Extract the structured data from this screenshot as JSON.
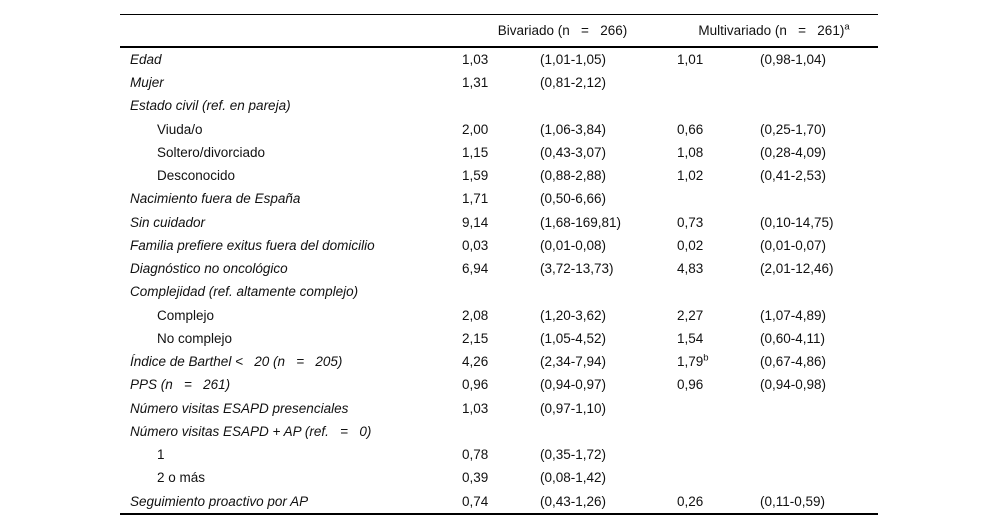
{
  "page": {
    "background_color": "#ffffff",
    "text_color": "#111111",
    "rule_color": "#000000"
  },
  "table": {
    "header": {
      "bivariate": "Bivariado (n   =   266)",
      "bivariate_sup": "",
      "multivariate": "Multivariado (n   =   261)",
      "multivariate_sup": "a"
    },
    "rows": [
      {
        "label": "Edad",
        "style": "main",
        "or1": "1,03",
        "ci1": "(1,01-1,05)",
        "or2": "1,01",
        "sup2": "",
        "ci2": "(0,98-1,04)"
      },
      {
        "label": "Mujer",
        "style": "main",
        "or1": "1,31",
        "ci1": "(0,81-2,12)",
        "or2": "",
        "sup2": "",
        "ci2": ""
      },
      {
        "label": "Estado civil (ref. en pareja)",
        "style": "main",
        "or1": "",
        "ci1": "",
        "or2": "",
        "sup2": "",
        "ci2": ""
      },
      {
        "label": "Viuda/o",
        "style": "sub",
        "or1": "2,00",
        "ci1": "(1,06-3,84)",
        "or2": "0,66",
        "sup2": "",
        "ci2": "(0,25-1,70)"
      },
      {
        "label": "Soltero/divorciado",
        "style": "sub",
        "or1": "1,15",
        "ci1": "(0,43-3,07)",
        "or2": "1,08",
        "sup2": "",
        "ci2": "(0,28-4,09)"
      },
      {
        "label": "Desconocido",
        "style": "sub",
        "or1": "1,59",
        "ci1": "(0,88-2,88)",
        "or2": "1,02",
        "sup2": "",
        "ci2": "(0,41-2,53)"
      },
      {
        "label": "Nacimiento fuera de España",
        "style": "main",
        "or1": "1,71",
        "ci1": "(0,50-6,66)",
        "or2": "",
        "sup2": "",
        "ci2": ""
      },
      {
        "label": "Sin cuidador",
        "style": "main",
        "or1": "9,14",
        "ci1": "(1,68-169,81)",
        "or2": "0,73",
        "sup2": "",
        "ci2": "(0,10-14,75)"
      },
      {
        "label": "Familia prefiere exitus fuera del domicilio",
        "style": "main",
        "or1": "0,03",
        "ci1": "(0,01-0,08)",
        "or2": "0,02",
        "sup2": "",
        "ci2": "(0,01-0,07)"
      },
      {
        "label": "Diagnóstico no oncológico",
        "style": "main",
        "or1": "6,94",
        "ci1": "(3,72-13,73)",
        "or2": "4,83",
        "sup2": "",
        "ci2": "(2,01-12,46)"
      },
      {
        "label": "Complejidad (ref. altamente complejo)",
        "style": "main",
        "or1": "",
        "ci1": "",
        "or2": "",
        "sup2": "",
        "ci2": ""
      },
      {
        "label": "Complejo",
        "style": "sub",
        "or1": "2,08",
        "ci1": "(1,20-3,62)",
        "or2": "2,27",
        "sup2": "",
        "ci2": "(1,07-4,89)"
      },
      {
        "label": "No complejo",
        "style": "sub",
        "or1": "2,15",
        "ci1": "(1,05-4,52)",
        "or2": "1,54",
        "sup2": "",
        "ci2": "(0,60-4,11)"
      },
      {
        "label": "Índice de Barthel <   20 (n   =   205)",
        "style": "main",
        "or1": "4,26",
        "ci1": "(2,34-7,94)",
        "or2": "1,79",
        "sup2": "b",
        "ci2": "(0,67-4,86)"
      },
      {
        "label": "PPS (n   =   261)",
        "style": "main",
        "or1": "0,96",
        "ci1": "(0,94-0,97)",
        "or2": "0,96",
        "sup2": "",
        "ci2": "(0,94-0,98)"
      },
      {
        "label": "Número visitas ESAPD presenciales",
        "style": "main",
        "or1": "1,03",
        "ci1": "(0,97-1,10)",
        "or2": "",
        "sup2": "",
        "ci2": ""
      },
      {
        "label": "Número visitas ESAPD + AP (ref.   =   0)",
        "style": "main",
        "or1": "",
        "ci1": "",
        "or2": "",
        "sup2": "",
        "ci2": ""
      },
      {
        "label": "1",
        "style": "sub",
        "or1": "0,78",
        "ci1": "(0,35-1,72)",
        "or2": "",
        "sup2": "",
        "ci2": ""
      },
      {
        "label": "2 o más",
        "style": "sub",
        "or1": "0,39",
        "ci1": "(0,08-1,42)",
        "or2": "",
        "sup2": "",
        "ci2": ""
      },
      {
        "label": "Seguimiento proactivo por AP",
        "style": "main",
        "or1": "0,74",
        "ci1": "(0,43-1,26)",
        "or2": "0,26",
        "sup2": "",
        "ci2": "(0,11-0,59)"
      }
    ]
  }
}
